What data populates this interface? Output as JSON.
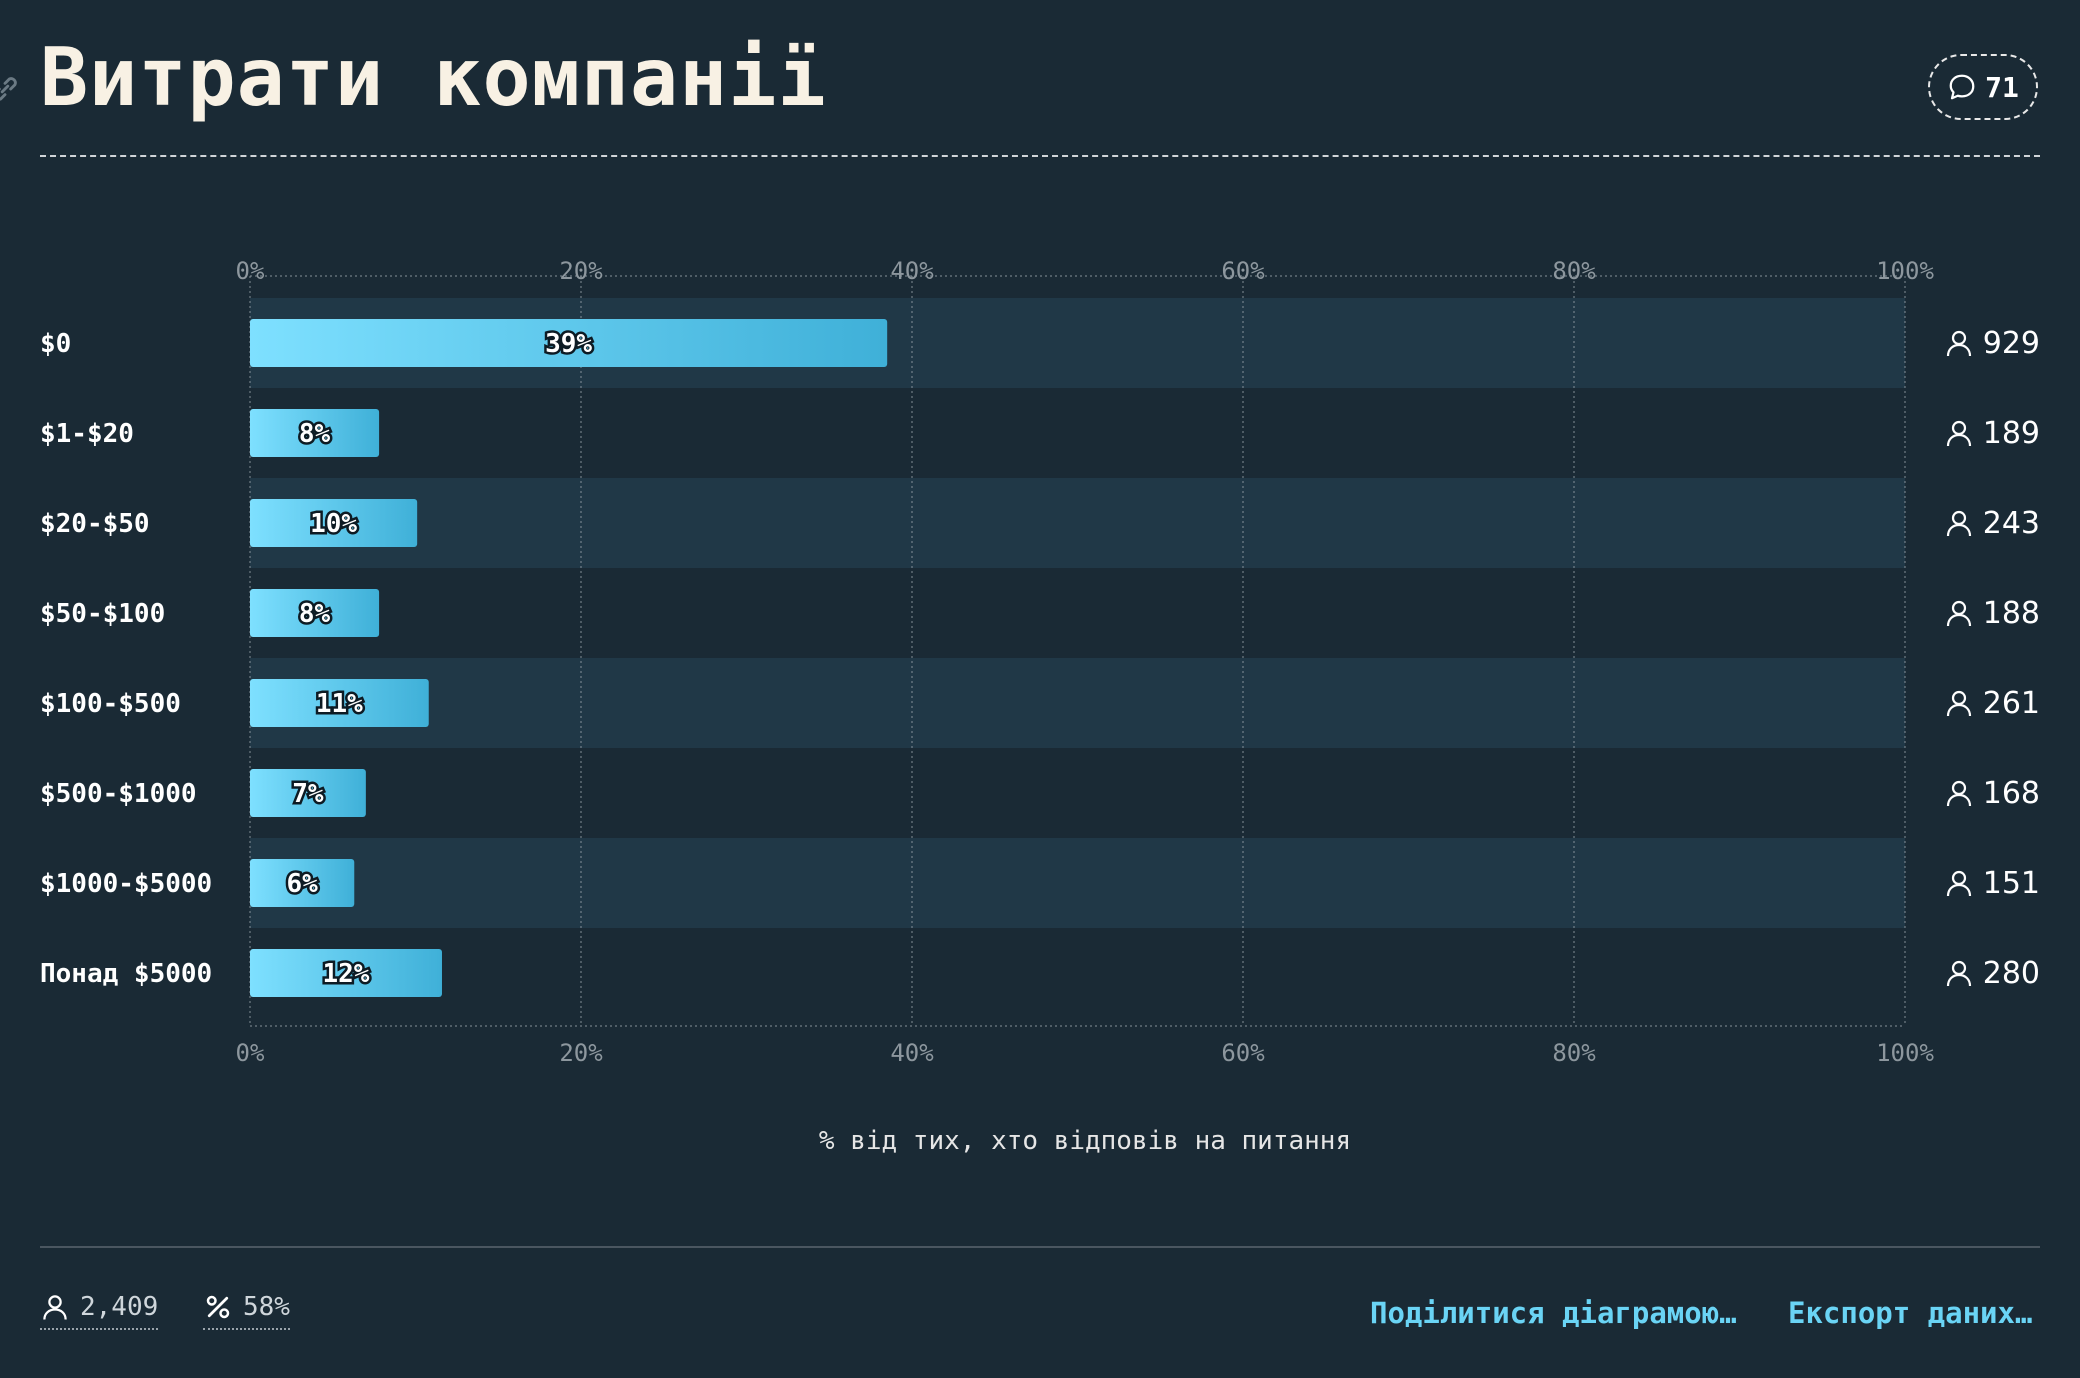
{
  "header": {
    "title": "Витрати компанії",
    "comment_count": "71"
  },
  "chart_data": {
    "type": "bar",
    "orientation": "horizontal",
    "categories": [
      "$0",
      "$1-$20",
      "$20-$50",
      "$50-$100",
      "$100-$500",
      "$500-$1000",
      "$1000-$5000",
      "Понад $5000"
    ],
    "values": [
      38.5,
      7.8,
      10.1,
      7.8,
      10.8,
      7.0,
      6.3,
      11.6
    ],
    "value_labels": [
      "39%",
      "8%",
      "10%",
      "8%",
      "11%",
      "7%",
      "6%",
      "12%"
    ],
    "respondents": [
      "929",
      "189",
      "243",
      "188",
      "261",
      "168",
      "151",
      "280"
    ],
    "xlim": [
      0,
      100
    ],
    "x_ticks": [
      "0%",
      "20%",
      "40%",
      "60%",
      "80%",
      "100%"
    ],
    "xlabel": "% від тих, хто відповів на питання",
    "grid": true,
    "colors": {
      "bar_start": "#7ee0ff",
      "bar_end": "#3fb0d8",
      "band": "#203847"
    }
  },
  "footer": {
    "respondents_total": "2,409",
    "percent_answered": "58%",
    "share_label": "Поділитися діаграмою…",
    "export_label": "Експорт даних…"
  }
}
